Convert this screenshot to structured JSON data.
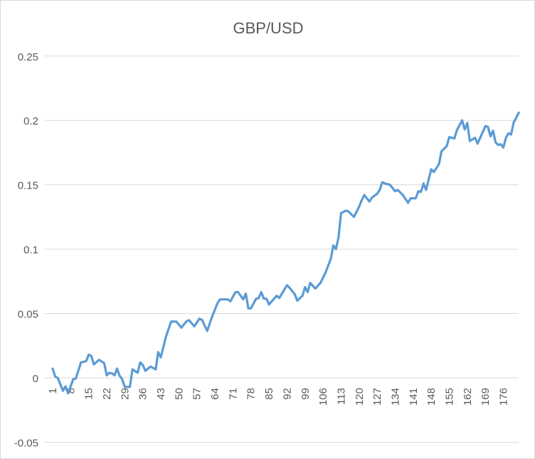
{
  "chart_data": {
    "type": "line",
    "title": "GBP/USD",
    "xlabel": "",
    "ylabel": "",
    "xlim": [
      1,
      182
    ],
    "ylim": [
      -0.05,
      0.25
    ],
    "y_ticks": [
      -0.05,
      0,
      0.05,
      0.1,
      0.15,
      0.2,
      0.25
    ],
    "y_tick_labels": [
      "-0.05",
      "0",
      "0.05",
      "0.1",
      "0.15",
      "0.2",
      "0.25"
    ],
    "x_tick_labels": [
      "1",
      "8",
      "15",
      "22",
      "29",
      "36",
      "43",
      "50",
      "57",
      "64",
      "71",
      "78",
      "85",
      "92",
      "99",
      "106",
      "113",
      "120",
      "127",
      "134",
      "141",
      "148",
      "155",
      "162",
      "169",
      "176"
    ],
    "grid": "horizontal",
    "legend": "none",
    "series": [
      {
        "color": "#5b9bd5",
        "points": [
          [
            1,
            0.0072
          ],
          [
            2,
            0.001
          ],
          [
            3,
            0.0
          ],
          [
            5,
            -0.01
          ],
          [
            6,
            -0.0066
          ],
          [
            7,
            -0.012
          ],
          [
            9,
            -0.001
          ],
          [
            10,
            -0.0005
          ],
          [
            12,
            0.012
          ],
          [
            14,
            0.013
          ],
          [
            15,
            0.018
          ],
          [
            16,
            0.017
          ],
          [
            17,
            0.0105
          ],
          [
            19,
            0.014
          ],
          [
            21,
            0.0115
          ],
          [
            22,
            0.002
          ],
          [
            23,
            0.004
          ],
          [
            24,
            0.0035
          ],
          [
            25,
            0.002
          ],
          [
            26,
            0.0072
          ],
          [
            27,
            0.0017
          ],
          [
            28,
            -0.001
          ],
          [
            29,
            -0.007
          ],
          [
            31,
            -0.007
          ],
          [
            32,
            0.0066
          ],
          [
            34,
            0.004
          ],
          [
            35,
            0.012
          ],
          [
            36,
            0.01
          ],
          [
            37,
            0.0055
          ],
          [
            39,
            0.0088
          ],
          [
            41,
            0.0066
          ],
          [
            42,
            0.02
          ],
          [
            43,
            0.016
          ],
          [
            45,
            0.032
          ],
          [
            47,
            0.0437
          ],
          [
            49,
            0.0437
          ],
          [
            51,
            0.039
          ],
          [
            53,
            0.044
          ],
          [
            54,
            0.0448
          ],
          [
            56,
            0.04
          ],
          [
            58,
            0.046
          ],
          [
            59,
            0.045
          ],
          [
            61,
            0.0365
          ],
          [
            63,
            0.048
          ],
          [
            64,
            0.053
          ],
          [
            65,
            0.058
          ],
          [
            66,
            0.061
          ],
          [
            69,
            0.061
          ],
          [
            70,
            0.0594
          ],
          [
            72,
            0.0666
          ],
          [
            73,
            0.0666
          ],
          [
            75,
            0.061
          ],
          [
            76,
            0.0655
          ],
          [
            77,
            0.054
          ],
          [
            78,
            0.054
          ],
          [
            80,
            0.0615
          ],
          [
            81,
            0.062
          ],
          [
            82,
            0.0666
          ],
          [
            83,
            0.0615
          ],
          [
            84,
            0.0615
          ],
          [
            85,
            0.057
          ],
          [
            88,
            0.0638
          ],
          [
            89,
            0.062
          ],
          [
            92,
            0.072
          ],
          [
            93,
            0.07
          ],
          [
            95,
            0.065
          ],
          [
            96,
            0.06
          ],
          [
            98,
            0.0638
          ],
          [
            99,
            0.0705
          ],
          [
            100,
            0.0666
          ],
          [
            101,
            0.0738
          ],
          [
            103,
            0.0694
          ],
          [
            105,
            0.0738
          ],
          [
            107,
            0.082
          ],
          [
            109,
            0.0925
          ],
          [
            110,
            0.103
          ],
          [
            111,
            0.1
          ],
          [
            112,
            0.109
          ],
          [
            113,
            0.128
          ],
          [
            115,
            0.13
          ],
          [
            116,
            0.129
          ],
          [
            118,
            0.125
          ],
          [
            120,
            0.133
          ],
          [
            121,
            0.138
          ],
          [
            122,
            0.142
          ],
          [
            124,
            0.137
          ],
          [
            125,
            0.14
          ],
          [
            126,
            0.1415
          ],
          [
            127,
            0.143
          ],
          [
            128,
            0.146
          ],
          [
            129,
            0.152
          ],
          [
            130,
            0.151
          ],
          [
            132,
            0.15
          ],
          [
            134,
            0.145
          ],
          [
            135,
            0.146
          ],
          [
            137,
            0.142
          ],
          [
            139,
            0.136
          ],
          [
            140,
            0.1395
          ],
          [
            142,
            0.1395
          ],
          [
            143,
            0.145
          ],
          [
            144,
            0.1445
          ],
          [
            145,
            0.151
          ],
          [
            146,
            0.146
          ],
          [
            148,
            0.162
          ],
          [
            149,
            0.16
          ],
          [
            151,
            0.166
          ],
          [
            152,
            0.176
          ],
          [
            154,
            0.18
          ],
          [
            155,
            0.187
          ],
          [
            157,
            0.186
          ],
          [
            158,
            0.1925
          ],
          [
            160,
            0.2
          ],
          [
            161,
            0.193
          ],
          [
            162,
            0.198
          ],
          [
            163,
            0.184
          ],
          [
            165,
            0.1865
          ],
          [
            166,
            0.182
          ],
          [
            169,
            0.1955
          ],
          [
            170,
            0.195
          ],
          [
            171,
            0.1876
          ],
          [
            172,
            0.192
          ],
          [
            173,
            0.183
          ],
          [
            174,
            0.181
          ],
          [
            175,
            0.1815
          ],
          [
            176,
            0.179
          ],
          [
            177,
            0.1865
          ],
          [
            178,
            0.19
          ],
          [
            179,
            0.189
          ],
          [
            180,
            0.1985
          ],
          [
            181,
            0.202
          ],
          [
            182,
            0.206
          ]
        ]
      }
    ]
  }
}
